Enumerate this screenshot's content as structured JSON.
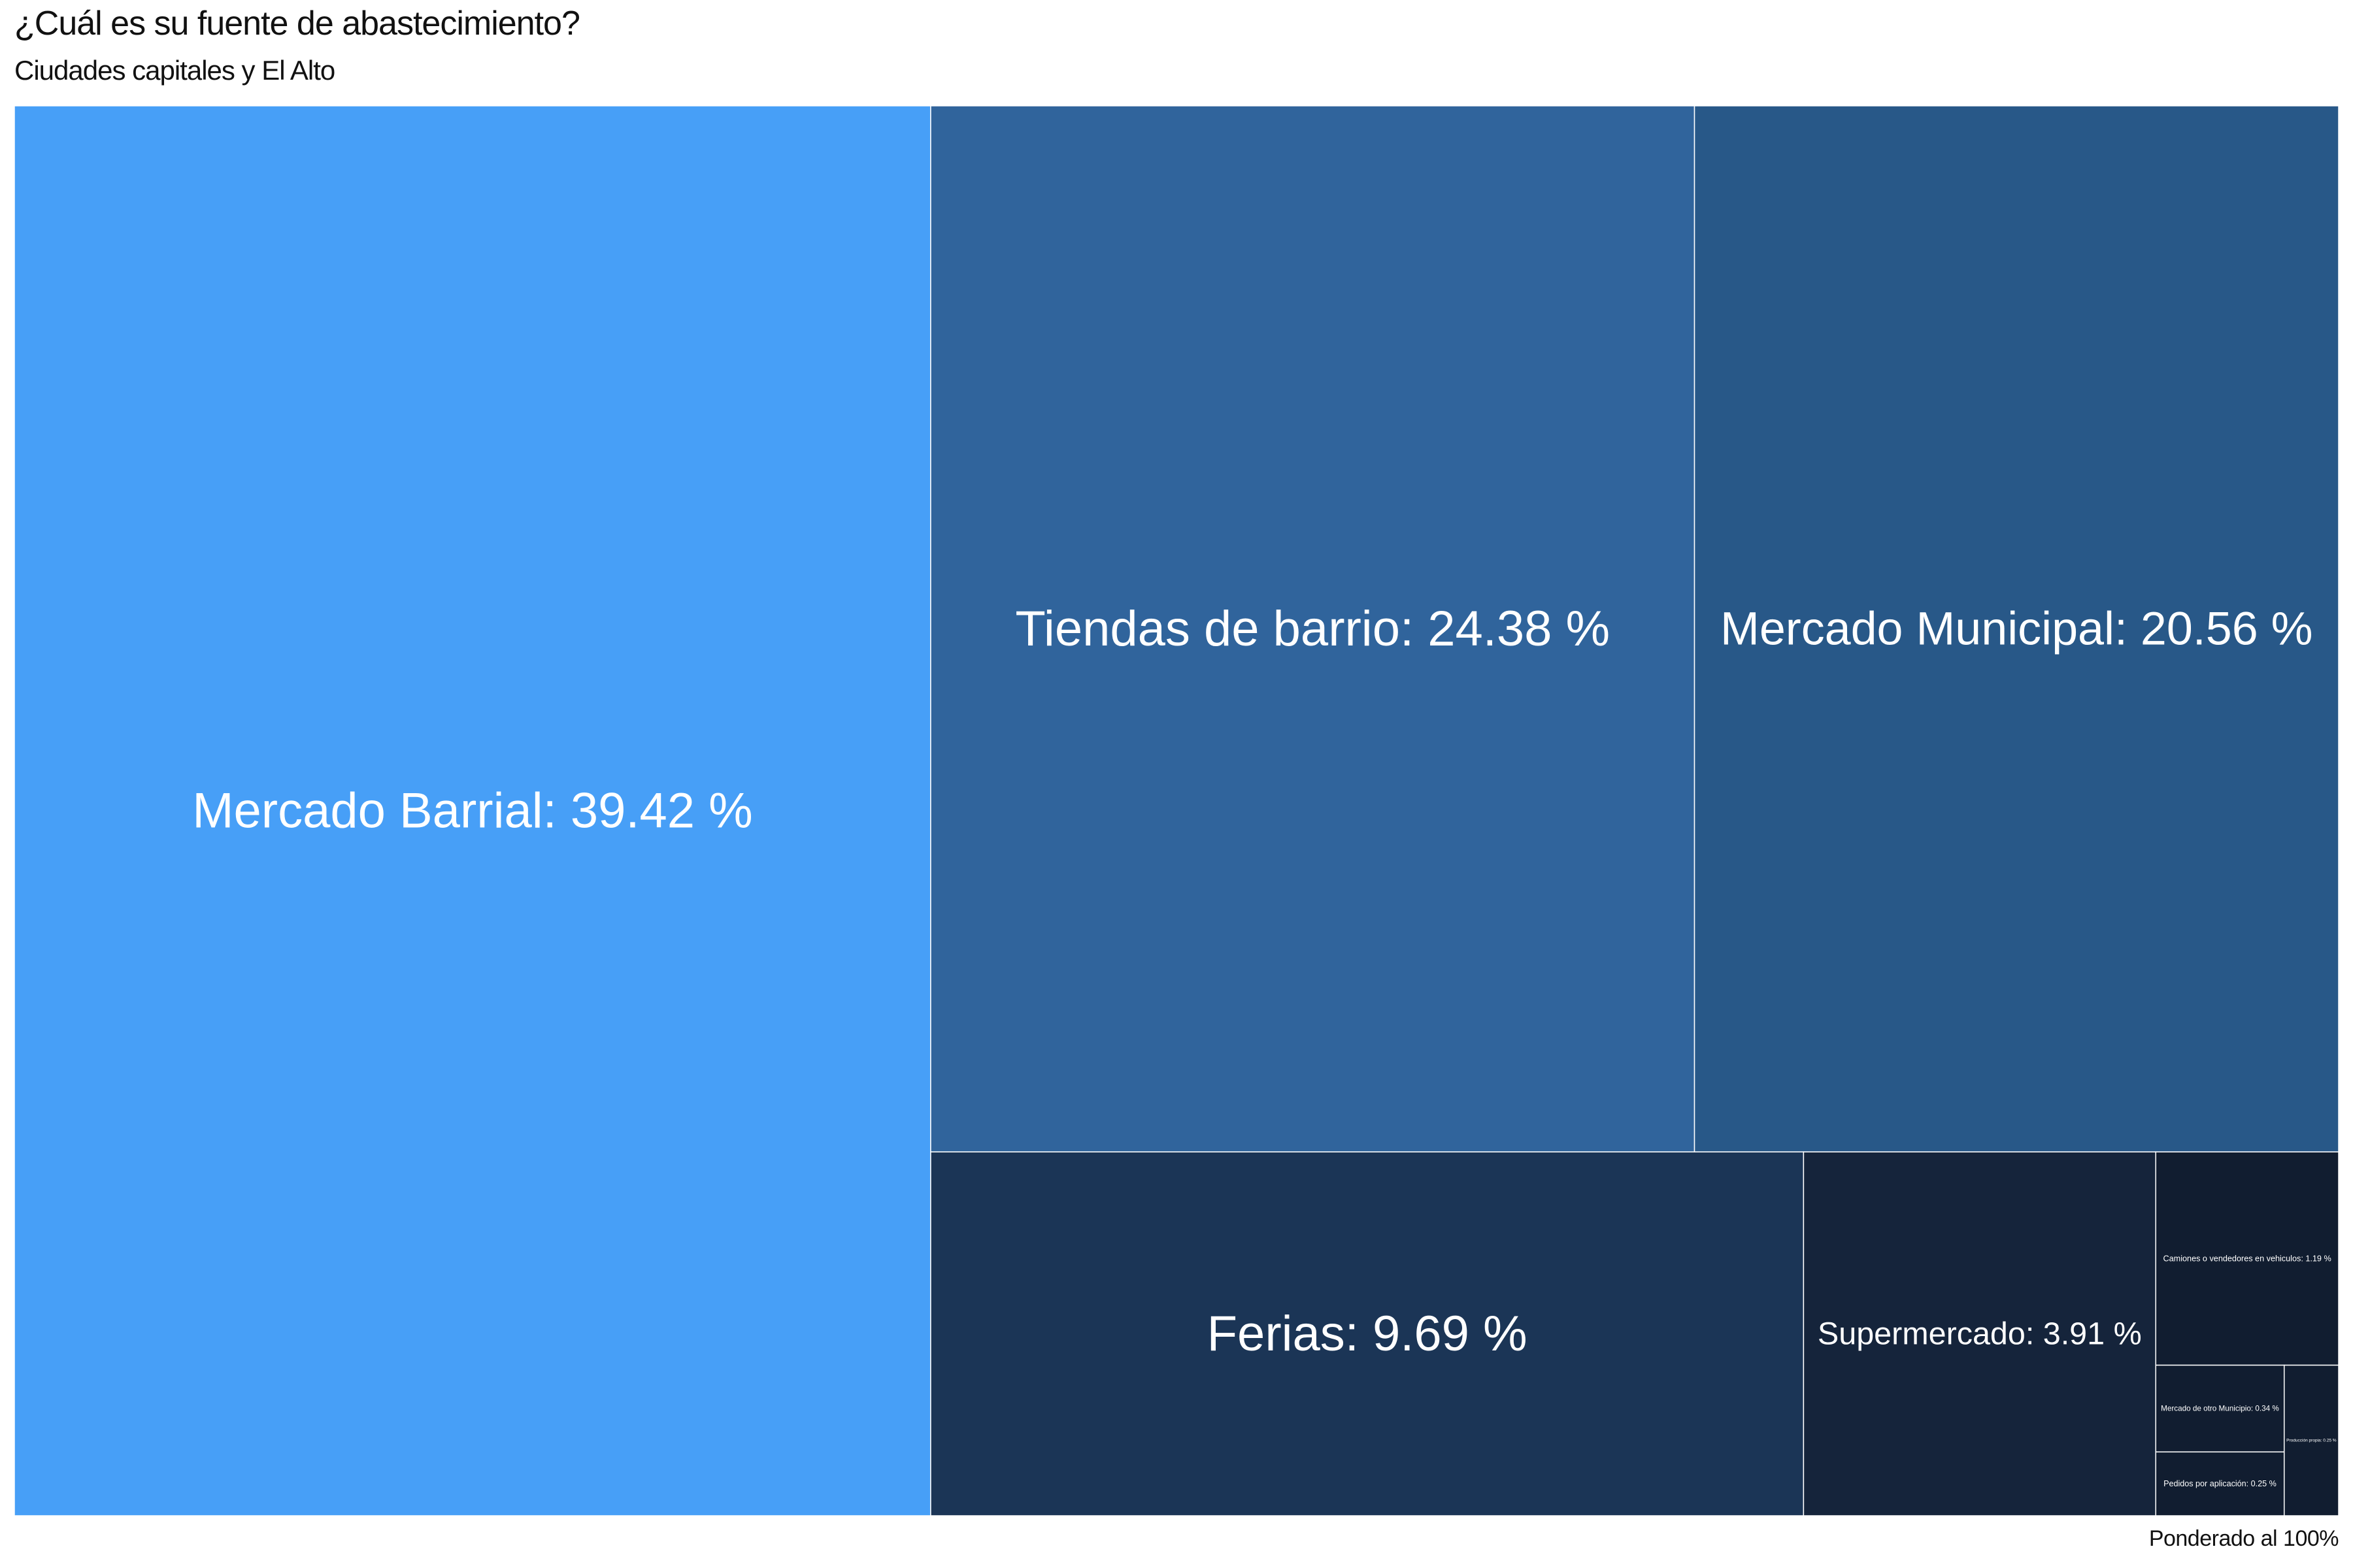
{
  "chart_data": {
    "type": "treemap",
    "title": "¿Cuál es su fuente de abastecimiento?",
    "subtitle": "Ciudades capitales y El Alto",
    "caption": "Ponderado al 100%",
    "unit": "%",
    "items": [
      {
        "name": "Mercado Barrial",
        "value": 39.42,
        "color": "#479ff7"
      },
      {
        "name": "Tiendas de barrio",
        "value": 24.38,
        "color": "#30649c"
      },
      {
        "name": "Mercado Municipal",
        "value": 20.56,
        "color": "#285888"
      },
      {
        "name": "Ferias",
        "value": 9.69,
        "color": "#1b3556"
      },
      {
        "name": "Supermercado",
        "value": 3.91,
        "color": "#15243b"
      },
      {
        "name": "Camiones o vendedores en vehiculos",
        "value": 1.19,
        "color": "#111d30"
      },
      {
        "name": "Mercado de otro Municipio",
        "value": 0.34,
        "color": "#111d30"
      },
      {
        "name": "Pedidos por aplicación",
        "value": 0.25,
        "color": "#111d30"
      },
      {
        "name": "Producción propia",
        "value": 0.25,
        "color": "#111d30"
      }
    ]
  }
}
